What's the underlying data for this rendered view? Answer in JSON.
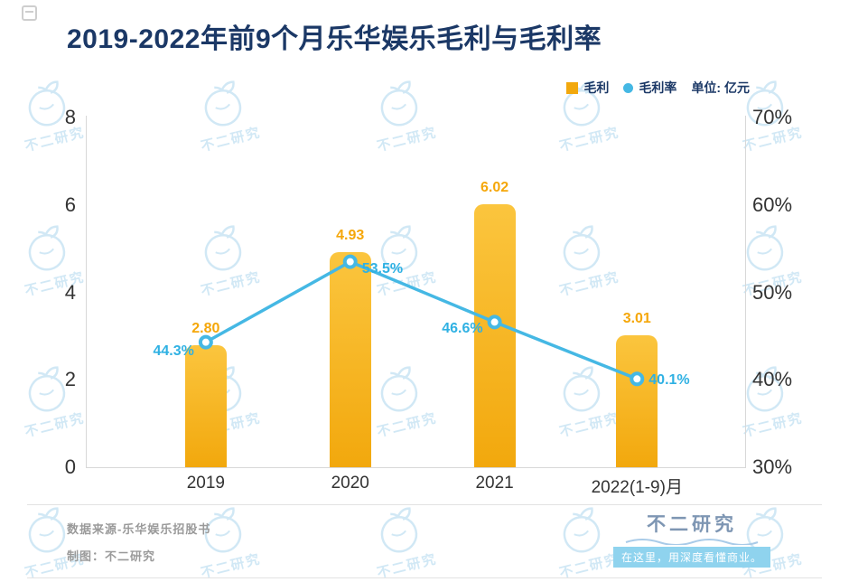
{
  "page": {
    "title": "2019-2022年前9个月乐华娱乐毛利与毛利率"
  },
  "legend": {
    "bar_label": "毛利",
    "line_label": "毛利率",
    "unit_label": "单位: 亿元"
  },
  "chart_data": {
    "type": "bar+line",
    "categories": [
      "2019",
      "2020",
      "2021",
      "2022(1-9)月"
    ],
    "series": [
      {
        "name": "毛利",
        "chart": "bar",
        "axis": "left",
        "unit": "亿元",
        "values": [
          2.8,
          4.93,
          6.02,
          3.01
        ],
        "labels": [
          "2.80",
          "4.93",
          "6.02",
          "3.01"
        ]
      },
      {
        "name": "毛利率",
        "chart": "line",
        "axis": "right",
        "values": [
          44.3,
          53.5,
          46.6,
          40.1
        ],
        "labels": [
          "44.3%",
          "53.5%",
          "46.6%",
          "40.1%"
        ]
      }
    ],
    "left_axis": {
      "min": 0,
      "max": 8,
      "ticks": [
        "8",
        "6",
        "4",
        "2",
        "0"
      ]
    },
    "right_axis": {
      "min": 30,
      "max": 70,
      "ticks": [
        "70%",
        "60%",
        "50%",
        "40%",
        "30%"
      ]
    },
    "legend_position": "top-right",
    "grid": false,
    "title": "2019-2022年前9个月乐华娱乐毛利与毛利率"
  },
  "footer": {
    "source": "数据来源-乐华娱乐招股书",
    "credit": "制图：不二研究",
    "brand": "不二研究",
    "slogan": "在这里，用深度看懂商业。"
  },
  "watermark": {
    "text": "不二研究"
  },
  "colors": {
    "title": "#1B3866",
    "bar": "#F2A80D",
    "bar_top": "#FBC53E",
    "bar_label": "#F5A70A",
    "line": "#45B8E4",
    "line_label": "#2FB1E3",
    "brand_text": "#7E96B3",
    "slogan_bg": "#8FD3EE",
    "watermark": "#C9E4F4"
  }
}
